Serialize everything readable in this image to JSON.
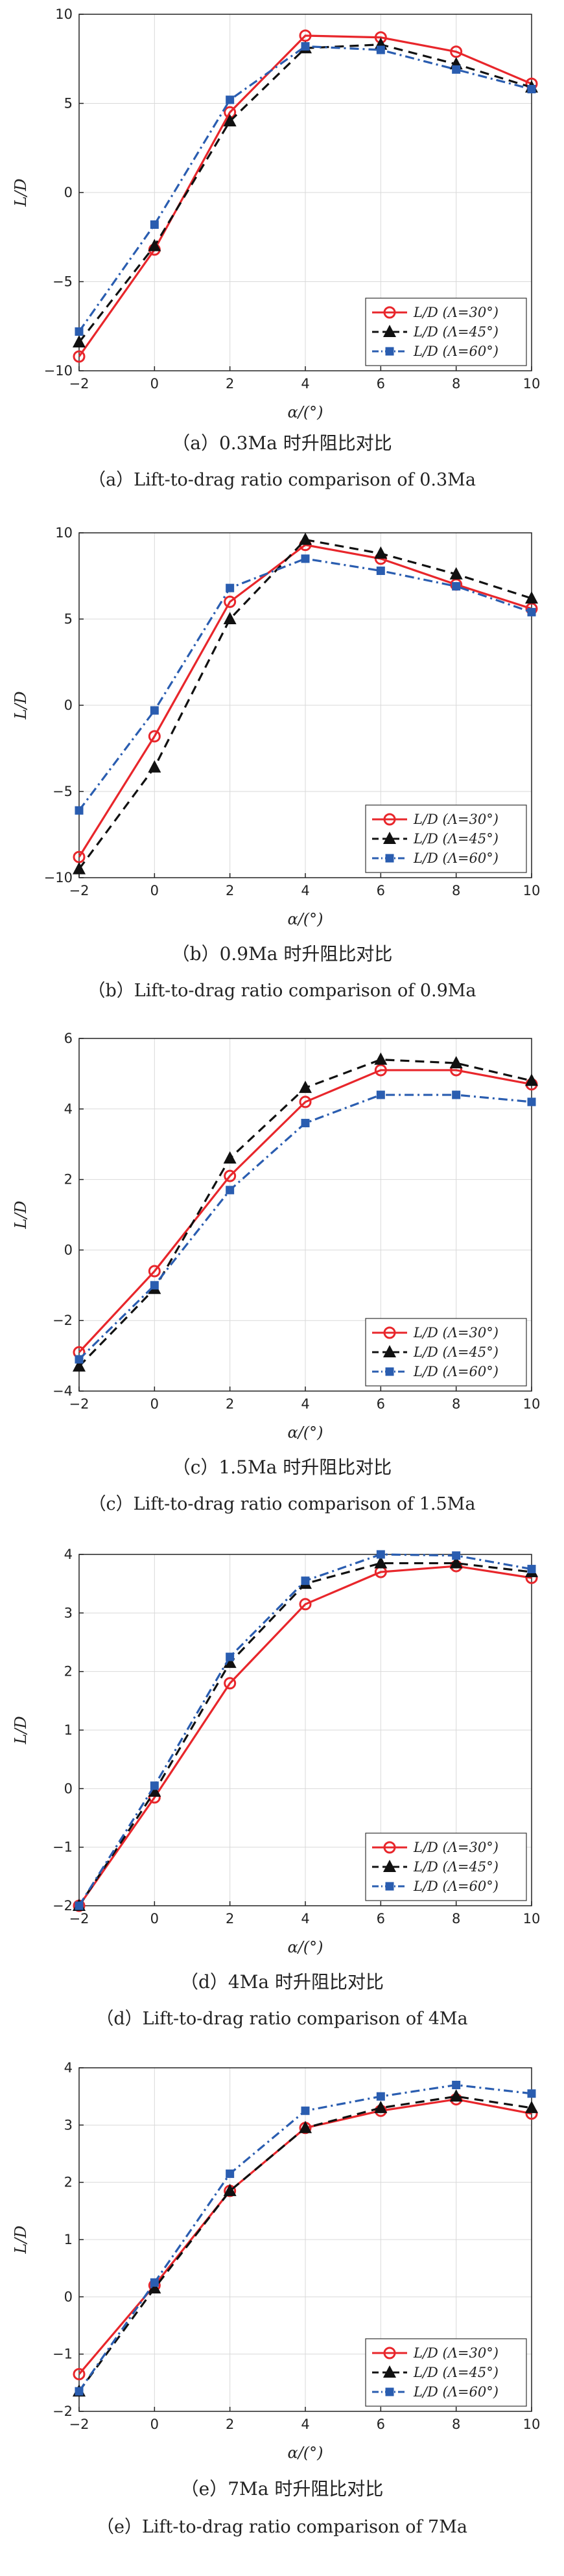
{
  "chart_data": [
    {
      "type": "line",
      "xlabel": "α/(°)",
      "ylabel": "L/D",
      "xlim": [
        -2,
        10
      ],
      "ylim": [
        -10,
        10
      ],
      "xticks": [
        -2,
        0,
        2,
        4,
        6,
        8,
        10
      ],
      "yticks": [
        -10,
        -5,
        0,
        5,
        10
      ],
      "x": [
        -2,
        0,
        2,
        4,
        6,
        8,
        10
      ],
      "series": [
        {
          "name": "L/D (Λ=30°)",
          "values": [
            -9.2,
            -3.2,
            4.5,
            8.8,
            8.7,
            7.9,
            6.1
          ]
        },
        {
          "name": "L/D (Λ=45°)",
          "values": [
            -8.4,
            -3.0,
            4.0,
            8.1,
            8.3,
            7.2,
            5.9
          ]
        },
        {
          "name": "L/D (Λ=60°)",
          "values": [
            -7.8,
            -1.8,
            5.2,
            8.2,
            8.0,
            6.9,
            5.8
          ]
        }
      ],
      "caption_cn": "（a）0.3Ma 时升阻比对比",
      "caption_en": "（a）Lift-to-drag ratio comparison of 0.3Ma"
    },
    {
      "type": "line",
      "xlabel": "α/(°)",
      "ylabel": "L/D",
      "xlim": [
        -2,
        10
      ],
      "ylim": [
        -10,
        10
      ],
      "xticks": [
        -2,
        0,
        2,
        4,
        6,
        8,
        10
      ],
      "yticks": [
        -10,
        -5,
        0,
        5,
        10
      ],
      "x": [
        -2,
        0,
        2,
        4,
        6,
        8,
        10
      ],
      "series": [
        {
          "name": "L/D (Λ=30°)",
          "values": [
            -8.8,
            -1.8,
            6.0,
            9.3,
            8.5,
            7.0,
            5.6
          ]
        },
        {
          "name": "L/D (Λ=45°)",
          "values": [
            -9.5,
            -3.6,
            5.0,
            9.6,
            8.8,
            7.6,
            6.2
          ]
        },
        {
          "name": "L/D (Λ=60°)",
          "values": [
            -6.1,
            -0.3,
            6.8,
            8.5,
            7.8,
            6.9,
            5.4
          ]
        }
      ],
      "caption_cn": "（b）0.9Ma 时升阻比对比",
      "caption_en": "（b）Lift-to-drag ratio comparison of 0.9Ma"
    },
    {
      "type": "line",
      "xlabel": "α/(°)",
      "ylabel": "L/D",
      "xlim": [
        -2,
        10
      ],
      "ylim": [
        -4,
        6
      ],
      "xticks": [
        -2,
        0,
        2,
        4,
        6,
        8,
        10
      ],
      "yticks": [
        -4,
        -2,
        0,
        2,
        4,
        6
      ],
      "x": [
        -2,
        0,
        2,
        4,
        6,
        8,
        10
      ],
      "series": [
        {
          "name": "L/D (Λ=30°)",
          "values": [
            -2.9,
            -0.6,
            2.1,
            4.2,
            5.1,
            5.1,
            4.7
          ]
        },
        {
          "name": "L/D (Λ=45°)",
          "values": [
            -3.3,
            -1.1,
            2.6,
            4.6,
            5.4,
            5.3,
            4.8
          ]
        },
        {
          "name": "L/D (Λ=60°)",
          "values": [
            -3.1,
            -1.0,
            1.7,
            3.6,
            4.4,
            4.4,
            4.2
          ]
        }
      ],
      "caption_cn": "（c）1.5Ma 时升阻比对比",
      "caption_en": "（c）Lift-to-drag ratio comparison of 1.5Ma"
    },
    {
      "type": "line",
      "xlabel": "α/(°)",
      "ylabel": "L/D",
      "xlim": [
        -2,
        10
      ],
      "ylim": [
        -2,
        4
      ],
      "xticks": [
        -2,
        0,
        2,
        4,
        6,
        8,
        10
      ],
      "yticks": [
        -2,
        -1,
        0,
        1,
        2,
        3,
        4
      ],
      "x": [
        -2,
        0,
        2,
        4,
        6,
        8,
        10
      ],
      "series": [
        {
          "name": "L/D (Λ=30°)",
          "values": [
            -2.0,
            -0.15,
            1.8,
            3.15,
            3.7,
            3.8,
            3.6
          ]
        },
        {
          "name": "L/D (Λ=45°)",
          "values": [
            -2.0,
            -0.05,
            2.15,
            3.5,
            3.85,
            3.85,
            3.7
          ]
        },
        {
          "name": "L/D (Λ=60°)",
          "values": [
            -2.0,
            0.05,
            2.25,
            3.55,
            4.0,
            3.98,
            3.75
          ]
        }
      ],
      "caption_cn": "（d）4Ma 时升阻比对比",
      "caption_en": "（d）Lift-to-drag ratio comparison of 4Ma"
    },
    {
      "type": "line",
      "xlabel": "α/(°)",
      "ylabel": "L/D",
      "xlim": [
        -2,
        10
      ],
      "ylim": [
        -2,
        4
      ],
      "xticks": [
        -2,
        0,
        2,
        4,
        6,
        8,
        10
      ],
      "yticks": [
        -2,
        -1,
        0,
        1,
        2,
        3,
        4
      ],
      "x": [
        -2,
        0,
        2,
        4,
        6,
        8,
        10
      ],
      "series": [
        {
          "name": "L/D (Λ=30°)",
          "values": [
            -1.35,
            0.2,
            1.85,
            2.95,
            3.25,
            3.45,
            3.2
          ]
        },
        {
          "name": "L/D (Λ=45°)",
          "values": [
            -1.65,
            0.15,
            1.85,
            2.95,
            3.3,
            3.5,
            3.3
          ]
        },
        {
          "name": "L/D (Λ=60°)",
          "values": [
            -1.65,
            0.25,
            2.15,
            3.25,
            3.5,
            3.7,
            3.55
          ]
        }
      ],
      "caption_cn": "（e）7Ma 时升阻比对比",
      "caption_en": "（e）Lift-to-drag ratio comparison of 7Ma"
    }
  ],
  "styles": {
    "series_colors": [
      "#e8262b",
      "#111111",
      "#2a5db0"
    ],
    "series_markers": [
      "circle",
      "triangle",
      "square"
    ],
    "series_dash": [
      "solid",
      "dash",
      "dashdot"
    ]
  }
}
